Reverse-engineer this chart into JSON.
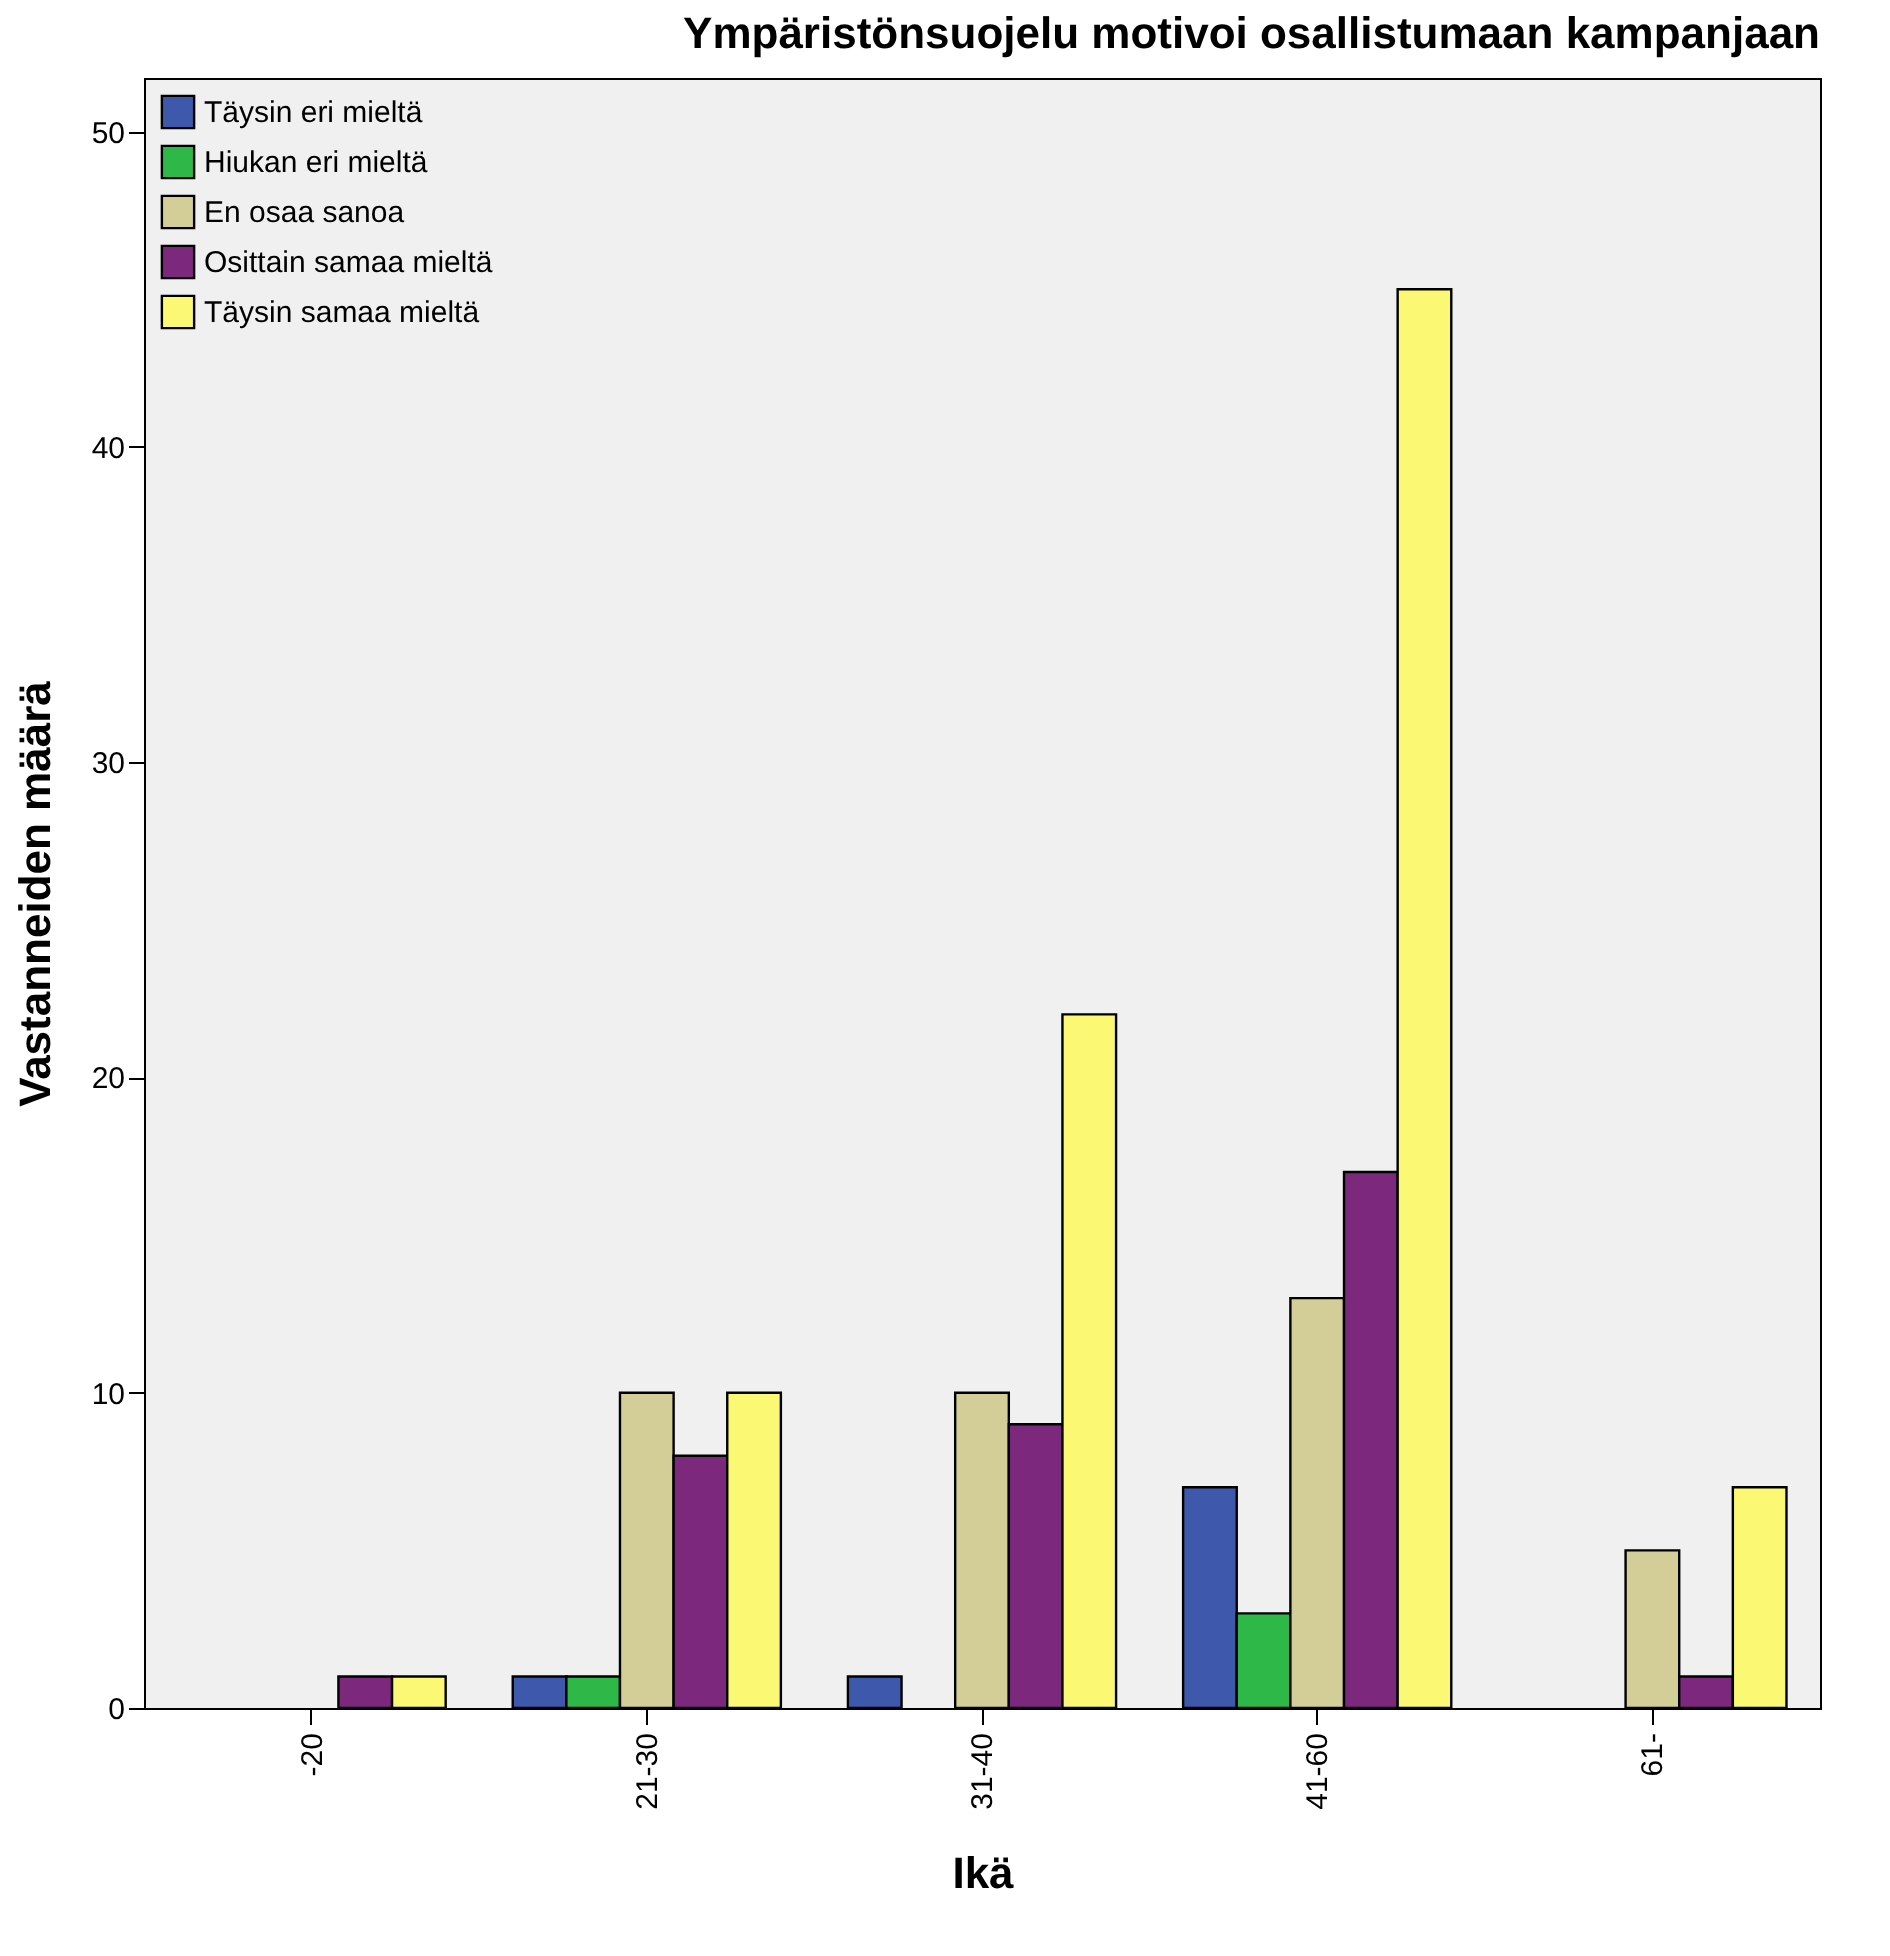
{
  "chart_data": {
    "type": "bar",
    "title": "Ympäristönsuojelu motivoi osallistumaan kampanjaan",
    "xlabel": "Ikä",
    "ylabel": "Vastanneiden määrä",
    "categories": [
      "-20",
      "21-30",
      "31-40",
      "41-60",
      "61-"
    ],
    "series": [
      {
        "name": "Täysin eri mieltä",
        "color": "#3e58ac",
        "values": [
          null,
          1,
          1,
          7,
          null
        ]
      },
      {
        "name": "Hiukan eri mieltä",
        "color": "#2eb848",
        "values": [
          null,
          1,
          null,
          3,
          null
        ]
      },
      {
        "name": "En osaa sanoa",
        "color": "#d3ce97",
        "values": [
          null,
          10,
          10,
          13,
          5
        ]
      },
      {
        "name": "Osittain samaa mieltä",
        "color": "#7c287d",
        "values": [
          1,
          8,
          9,
          17,
          1
        ]
      },
      {
        "name": "Täysin samaa mieltä",
        "color": "#fbf873",
        "values": [
          1,
          10,
          22,
          45,
          7
        ]
      }
    ],
    "ylim": [
      0,
      51.7
    ],
    "yticks": [
      0,
      10,
      20,
      30,
      40,
      50
    ],
    "grid": false,
    "legend": "top left"
  }
}
